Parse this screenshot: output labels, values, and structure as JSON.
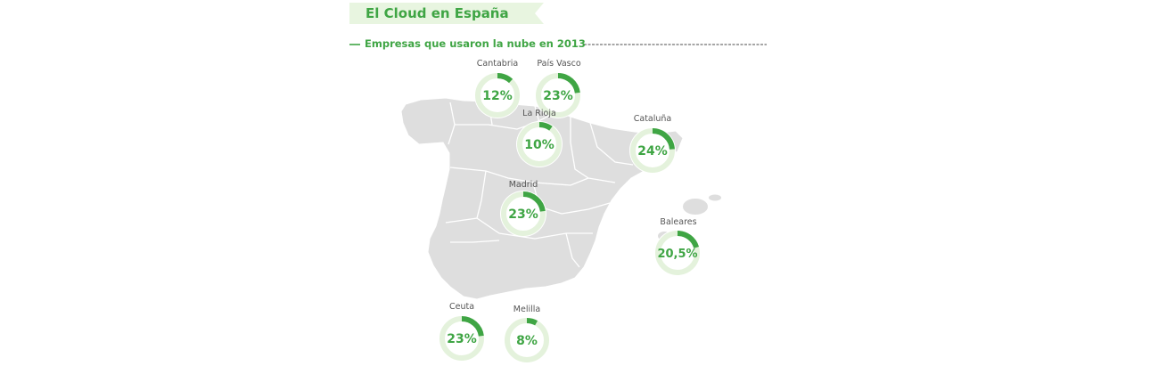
{
  "title": "El Cloud en España",
  "subtitle": "Empresas que usaron la nube en 2013",
  "colors": {
    "accent_green": "#3fa544",
    "ring_track": "#e4f2dc",
    "banner_fill": "#e8f5e0",
    "map_fill": "#dedede",
    "map_border": "#ffffff",
    "label_gray": "#555555",
    "dash_gray": "#888888"
  },
  "chart_data": {
    "type": "donut",
    "title": "Empresas que usaron la nube en 2013",
    "unit": "%",
    "regions": [
      {
        "name": "Cantabria",
        "value": 12,
        "label": "12%"
      },
      {
        "name": "País Vasco",
        "value": 23,
        "label": "23%"
      },
      {
        "name": "La Rioja",
        "value": 10,
        "label": "10%"
      },
      {
        "name": "Cataluña",
        "value": 24,
        "label": "24%"
      },
      {
        "name": "Madrid",
        "value": 23,
        "label": "23%"
      },
      {
        "name": "Baleares",
        "value": 20.5,
        "label": "20,5%"
      },
      {
        "name": "Ceuta",
        "value": 23,
        "label": "23%"
      },
      {
        "name": "Melilla",
        "value": 8,
        "label": "8%"
      }
    ]
  }
}
